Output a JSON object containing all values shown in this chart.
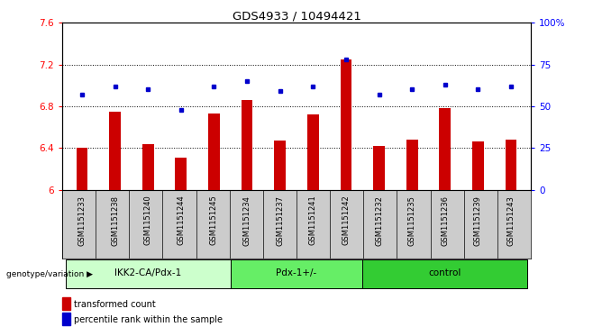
{
  "title": "GDS4933 / 10494421",
  "samples": [
    "GSM1151233",
    "GSM1151238",
    "GSM1151240",
    "GSM1151244",
    "GSM1151245",
    "GSM1151234",
    "GSM1151237",
    "GSM1151241",
    "GSM1151242",
    "GSM1151232",
    "GSM1151235",
    "GSM1151236",
    "GSM1151239",
    "GSM1151243"
  ],
  "red_values": [
    6.4,
    6.75,
    6.44,
    6.31,
    6.73,
    6.86,
    6.47,
    6.72,
    7.25,
    6.42,
    6.48,
    6.78,
    6.46,
    6.48
  ],
  "blue_values": [
    57,
    62,
    60,
    48,
    62,
    65,
    59,
    62,
    78,
    57,
    60,
    63,
    60,
    62
  ],
  "groups": [
    {
      "label": "IKK2-CA/Pdx-1",
      "start": 0,
      "end": 5,
      "color": "#ccffcc"
    },
    {
      "label": "Pdx-1+/-",
      "start": 5,
      "end": 9,
      "color": "#66ee66"
    },
    {
      "label": "control",
      "start": 9,
      "end": 14,
      "color": "#33cc33"
    }
  ],
  "ylim_left": [
    6.0,
    7.6
  ],
  "ylim_right": [
    0,
    100
  ],
  "yticks_left": [
    6.0,
    6.4,
    6.8,
    7.2,
    7.6
  ],
  "yticks_right": [
    0,
    25,
    50,
    75,
    100
  ],
  "ytick_labels_left": [
    "6",
    "6.4",
    "6.8",
    "7.2",
    "7.6"
  ],
  "ytick_labels_right": [
    "0",
    "25",
    "50",
    "75",
    "100%"
  ],
  "bar_color": "#cc0000",
  "dot_color": "#0000cc",
  "background_color": "#ffffff",
  "xlabel_group": "genotype/variation",
  "legend_red": "transformed count",
  "legend_blue": "percentile rank within the sample",
  "red_base": 6.0,
  "sample_bg": "#cccccc",
  "grid_color": "#333333"
}
